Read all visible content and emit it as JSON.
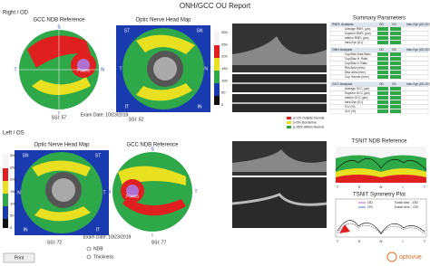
{
  "header": {
    "title": "ONH/GCC OU Report",
    "right_eye": "Right / OD",
    "left_eye": "Left / OS"
  },
  "od": {
    "gcc_title": "GCC NDB Reference",
    "onh_title": "Optic Nerve Head Map",
    "gcc_ssi": "SSI: 57",
    "onh_ssi": "SSI: 52",
    "exam_date": "Exam Date: 10/23/2019",
    "fovea": "Fovea",
    "gcc_dirs": [
      "S",
      "T",
      "N",
      "I"
    ],
    "onh_dirs": [
      "ST",
      "SN",
      "T",
      "N",
      "IT",
      "IN"
    ]
  },
  "os": {
    "gcc_title": "GCC NDB Reference",
    "onh_title": "Optic Nerve Head Map",
    "gcc_ssi": "SSI: 77",
    "onh_ssi": "SSI: 72",
    "exam_date": "Exam Date: 10/23/2019",
    "fovea": "Fovea",
    "gcc_dirs": [
      "S",
      "N",
      "T",
      "I"
    ],
    "onh_dirs": [
      "SN",
      "ST",
      "N",
      "T",
      "IN",
      "IT"
    ]
  },
  "colorbar_ticks": [
    "300",
    "250",
    "200",
    "150",
    "100",
    "50",
    "0"
  ],
  "summary": {
    "title": "Summary Parameters",
    "columns": [
      "OD",
      "OS",
      "Inter-Eye (OD-OS)"
    ],
    "sections": [
      {
        "name": "RNFL Analysis",
        "rows": [
          "Average RNFL (µm)",
          "Superior RNFL (µm)",
          "Inferior RNFL (µm)",
          "Intra-Eye (S-I)"
        ]
      },
      {
        "name": "ONH Analysis",
        "rows": [
          "Cup/Disc Area Ratio",
          "Cup/Disc H. Ratio",
          "Cup/Disc V. Ratio",
          "Rim Area (mm²)",
          "Disc Area (mm²)",
          "Cup Volume (mm³)"
        ]
      },
      {
        "name": "GCC Analysis",
        "rows": [
          "Average GCC (µm)",
          "Superior GCC (µm)",
          "Inferior GCC (µm)",
          "Intra-Eye (S-I)",
          "FLV (%)",
          "GLV (%)"
        ]
      }
    ]
  },
  "legend": [
    "p<1% Outside Normal",
    "p<5% Borderline",
    "p<95% Within Normal"
  ],
  "tsnit": {
    "title": "TSNIT NDB Reference",
    "dirs": [
      "T",
      "S",
      "N",
      "I",
      "T"
    ]
  },
  "symmetry": {
    "title": "TSNIT Symmetry Plot",
    "od": "OD",
    "os": "OS",
    "solid": "Solid line - OD",
    "dash": "Dash line - OS",
    "dirs": [
      "T",
      "S",
      "N",
      "I",
      "T"
    ]
  },
  "controls": {
    "ndb": "NDB",
    "thickness": "Thickness",
    "print": "Print",
    "logo": "optovue"
  }
}
